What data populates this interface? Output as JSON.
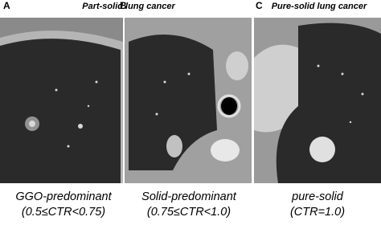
{
  "groups": [
    {
      "title": "Part-solid lung cancer"
    },
    {
      "title": "Pure-solid lung cancer"
    }
  ],
  "panels": [
    {
      "letter": "A",
      "caption": [
        "GGO-predominant",
        "(0.5≤CTR<0.75)"
      ]
    },
    {
      "letter": "B",
      "caption": [
        "Solid-predominant",
        "(0.75≤CTR<1.0)"
      ]
    },
    {
      "letter": "C",
      "caption": [
        "pure-solid",
        "(CTR=1.0)"
      ]
    }
  ]
}
